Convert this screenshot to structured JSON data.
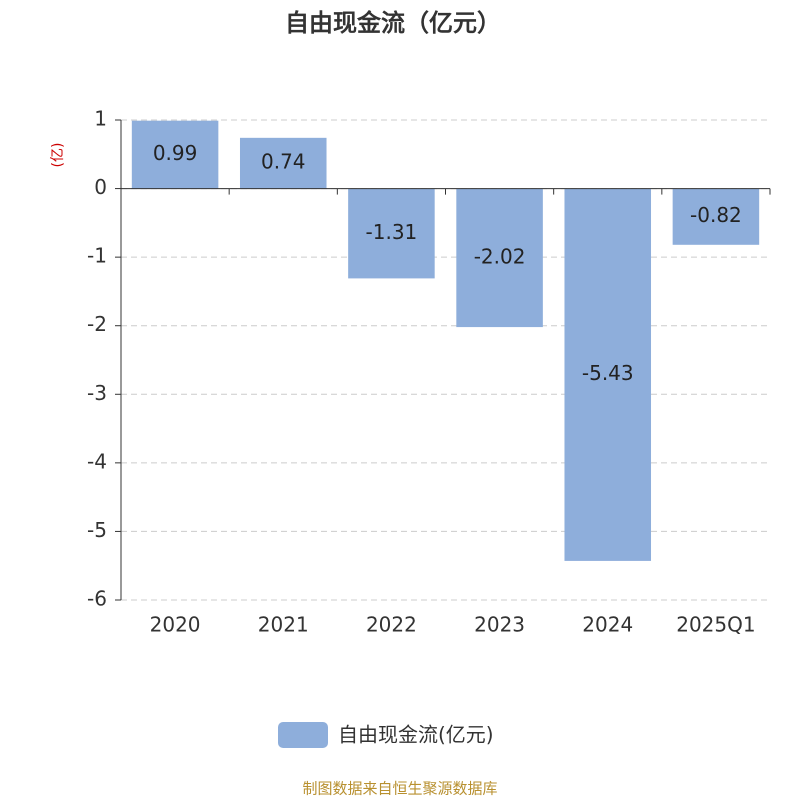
{
  "chart_data": {
    "type": "bar",
    "title": "自由现金流（亿元）",
    "y_label": "(亿)",
    "categories": [
      "2020",
      "2021",
      "2022",
      "2023",
      "2024",
      "2025Q1"
    ],
    "series": [
      {
        "name": "自由现金流(亿元)",
        "color": "#8eaedb",
        "values": [
          0.99,
          0.74,
          -1.31,
          -2.02,
          -5.43,
          -0.82
        ]
      }
    ],
    "ylim": [
      -6,
      1
    ],
    "yticks": [
      1,
      0,
      -1,
      -2,
      -3,
      -4,
      -5,
      -6
    ],
    "grid": true,
    "legend": "bottom",
    "source": "制图数据来自恒生聚源数据库"
  }
}
